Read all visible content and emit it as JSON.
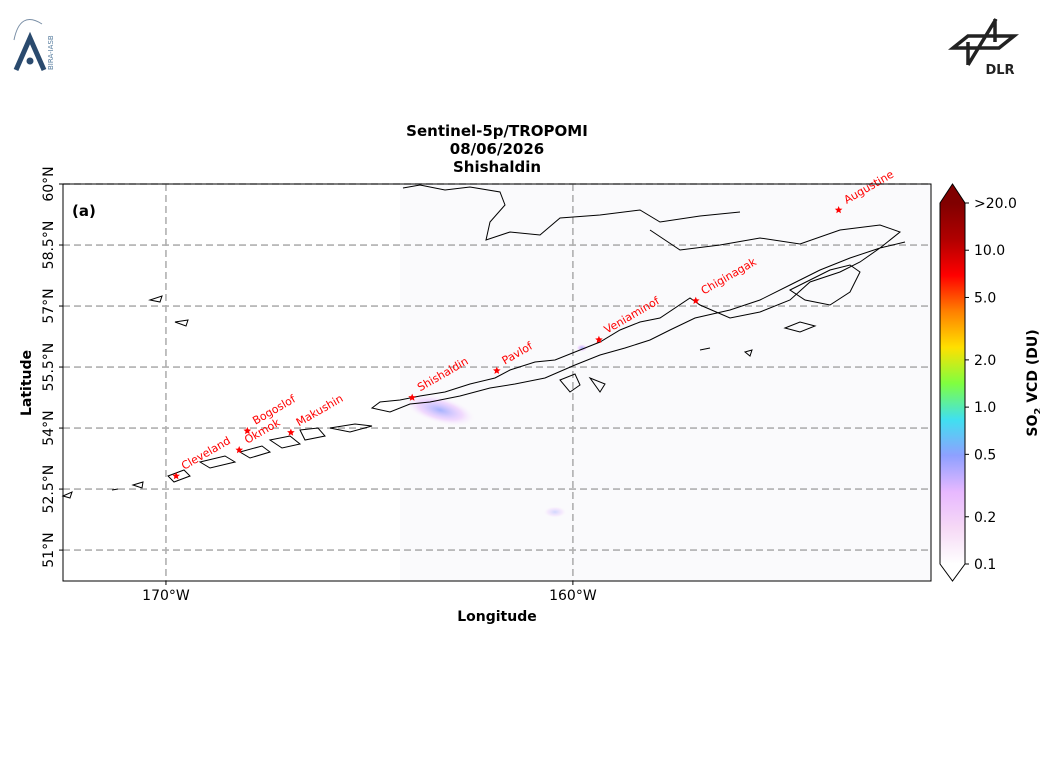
{
  "header": {
    "left_logo_text": "BIRA-IASB",
    "right_logo_text": "DLR"
  },
  "chart_data": {
    "type": "map",
    "title": [
      "Sentinel-5p/TROPOMI",
      "08/06/2026",
      "Shishaldin"
    ],
    "panel_label": "(a)",
    "xlabel": "Longitude",
    "ylabel": "Latitude",
    "xlim": [
      -172.53,
      -151.2
    ],
    "ylim": [
      50.24,
      60.0
    ],
    "xticks": [
      {
        "value": -170,
        "label": "170°W"
      },
      {
        "value": -160,
        "label": "160°W"
      }
    ],
    "yticks": [
      {
        "value": 51,
        "label": "51°N"
      },
      {
        "value": 52.5,
        "label": "52.5°N"
      },
      {
        "value": 54,
        "label": "54°N"
      },
      {
        "value": 55.5,
        "label": "55.5°N"
      },
      {
        "value": 57,
        "label": "57°N"
      },
      {
        "value": 58.5,
        "label": "58.5°N"
      },
      {
        "value": 60,
        "label": "60°N"
      }
    ],
    "grid": true,
    "marker_color": "#ff0000",
    "volcanoes": [
      {
        "name": "Cleveland",
        "lon": -169.75,
        "lat": 52.82
      },
      {
        "name": "Okmok",
        "lon": -168.2,
        "lat": 53.46
      },
      {
        "name": "Bogoslof",
        "lon": -168.0,
        "lat": 53.93
      },
      {
        "name": "Makushin",
        "lon": -166.93,
        "lat": 53.89
      },
      {
        "name": "Shishaldin",
        "lon": -163.95,
        "lat": 54.75
      },
      {
        "name": "Pavlof",
        "lon": -161.87,
        "lat": 55.41
      },
      {
        "name": "Veniaminof",
        "lon": -159.36,
        "lat": 56.17
      },
      {
        "name": "Chiginagak",
        "lon": -156.98,
        "lat": 57.13
      },
      {
        "name": "Augustine",
        "lon": -153.47,
        "lat": 59.36
      }
    ],
    "colorbar": {
      "label": [
        "SO",
        "2",
        " VCD (DU)"
      ],
      "scale": "log",
      "lim": [
        0.1,
        20
      ],
      "ticks": [
        0.1,
        0.2,
        0.5,
        {
          "value": 1,
          "label": "1.0"
        },
        {
          "value": 2,
          "label": "2.0"
        },
        {
          "value": 5,
          "label": "5.0"
        },
        {
          "value": 10,
          "label": "10.0"
        },
        {
          "value": 20,
          "label": ">20.0"
        }
      ],
      "colors": [
        "#ffffff",
        "#f6d9f6",
        "#e7b8ff",
        "#8fa0ff",
        "#40e0f0",
        "#7fff40",
        "#ffe000",
        "#ff8000",
        "#ff0000",
        "#b00000",
        "#800000"
      ]
    }
  }
}
